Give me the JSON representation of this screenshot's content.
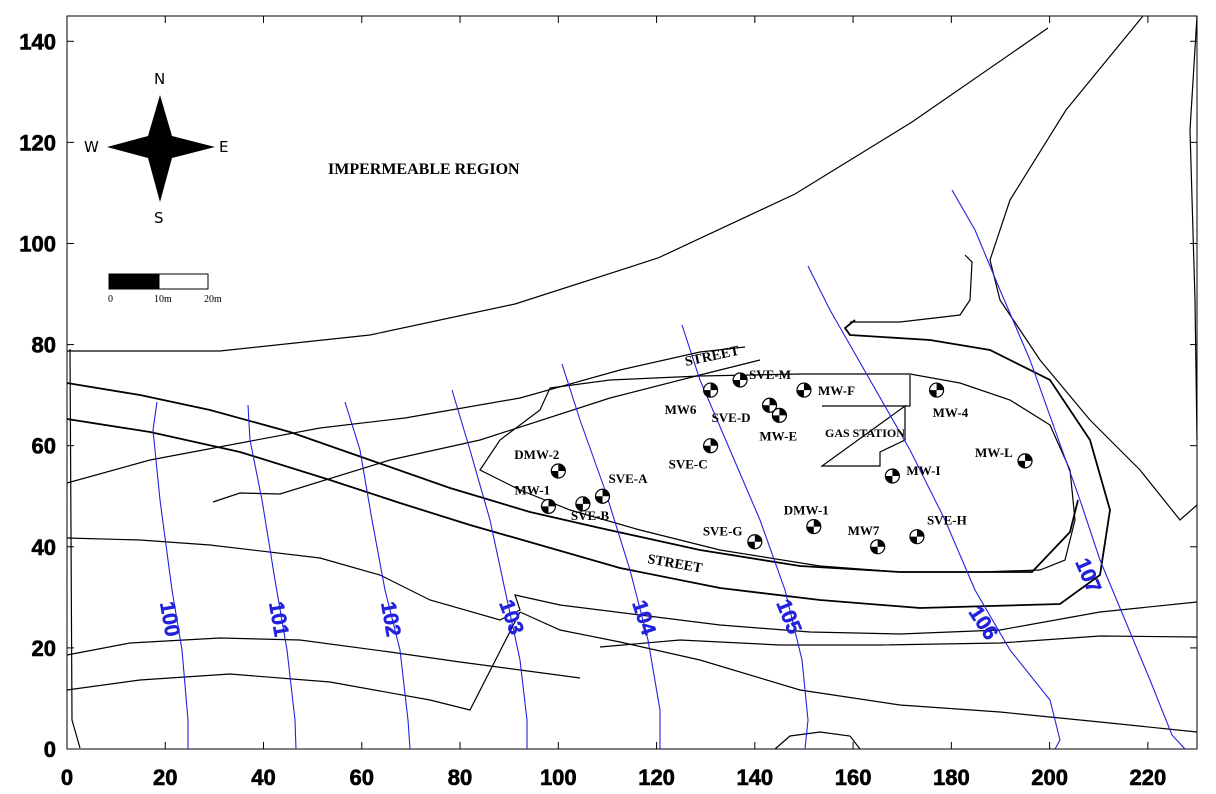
{
  "axes": {
    "x_ticks": [
      "0",
      "20",
      "40",
      "60",
      "80",
      "100",
      "120",
      "140",
      "160",
      "180",
      "200",
      "220"
    ],
    "y_ticks": [
      "0",
      "20",
      "40",
      "60",
      "80",
      "100",
      "120",
      "140"
    ],
    "xlim": [
      0,
      230
    ],
    "ylim": [
      0,
      145
    ]
  },
  "compass": {
    "north": "N",
    "south": "S",
    "east": "E",
    "west": "W"
  },
  "scale_bar": {
    "labels": [
      "0",
      "10m",
      "20m"
    ]
  },
  "region_label": "IMPERMEABLE REGION",
  "street_labels": [
    "STREET",
    "STREET"
  ],
  "gas_station_label": "GAS STATION",
  "wells": [
    {
      "name": "DMW-2",
      "x": 100,
      "y": 55
    },
    {
      "name": "MW-1",
      "x": 98,
      "y": 48
    },
    {
      "name": "SVE-A",
      "x": 109,
      "y": 50
    },
    {
      "name": "SVE-B",
      "x": 105,
      "y": 48.5
    },
    {
      "name": "MW6",
      "x": 131,
      "y": 71
    },
    {
      "name": "SVE-M",
      "x": 137,
      "y": 73
    },
    {
      "name": "SVE-D",
      "x": 143,
      "y": 68
    },
    {
      "name": "MW-E",
      "x": 145,
      "y": 66
    },
    {
      "name": "MW-F",
      "x": 150,
      "y": 71
    },
    {
      "name": "MW-4",
      "x": 177,
      "y": 71
    },
    {
      "name": "SVE-C",
      "x": 131,
      "y": 60
    },
    {
      "name": "MW-I",
      "x": 168,
      "y": 54
    },
    {
      "name": "MW-L",
      "x": 195,
      "y": 57
    },
    {
      "name": "DMW-1",
      "x": 152,
      "y": 44
    },
    {
      "name": "SVE-G",
      "x": 140,
      "y": 41
    },
    {
      "name": "MW7",
      "x": 165,
      "y": 40
    },
    {
      "name": "SVE-H",
      "x": 173,
      "y": 42
    }
  ],
  "contours": [
    {
      "label": "100"
    },
    {
      "label": "101"
    },
    {
      "label": "102"
    },
    {
      "label": "103"
    },
    {
      "label": "104"
    },
    {
      "label": "105"
    },
    {
      "label": "106"
    },
    {
      "label": "107"
    }
  ],
  "colors": {
    "contour": "#2222dd",
    "roads": "#000000",
    "wells": "#000000"
  }
}
